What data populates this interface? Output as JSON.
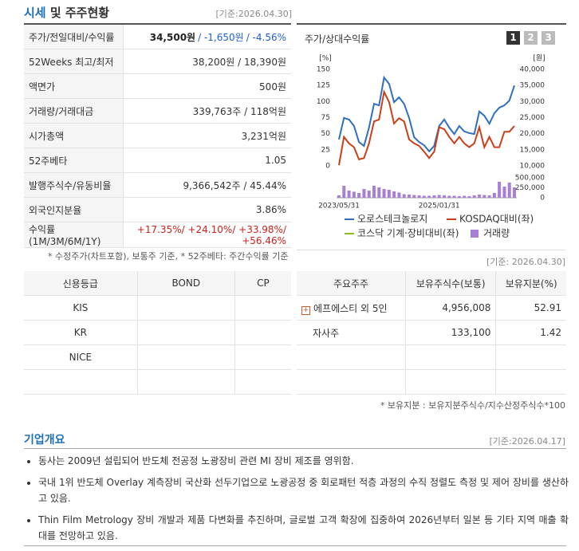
{
  "header": {
    "title_main": "시세",
    "title_rest": "및 주주현황",
    "date": "[기준:2026.04.30]"
  },
  "price_table": {
    "rows": [
      {
        "label": "주가/전일대비/수익률",
        "value": [
          "34,500원",
          "/ -1,650원",
          "/ -4.56%"
        ]
      },
      {
        "label": "52Weeks 최고/최저",
        "value": [
          "38,200원 / 18,390원"
        ]
      },
      {
        "label": "액면가",
        "value": [
          "500원"
        ]
      },
      {
        "label": "거래량/거래대금",
        "value": [
          "339,763주 / 118억원"
        ]
      },
      {
        "label": "시가총액",
        "value": [
          "3,231억원"
        ]
      },
      {
        "label": "52주베타",
        "value": [
          "1.05"
        ]
      },
      {
        "label": "발행주식수/유동비율",
        "value": [
          "9,366,542주 / 45.44%"
        ]
      },
      {
        "label": "외국인지분율",
        "value": [
          "3.86%"
        ]
      },
      {
        "label": "수익률 (1M/3M/6M/1Y)",
        "value": [
          "+17.35%/ +24.10%/ +33.98%/ +56.46%"
        ]
      }
    ],
    "note": "* 수정주가(차트포함), 보통주 기준, * 52주베타: 주간수익률 기준"
  },
  "chart_data": {
    "type": "line",
    "title": "주가/상대수익률",
    "buttons": [
      "1",
      "2",
      "3"
    ],
    "ylabel": "[%]",
    "y2label": "[원]",
    "categories": [
      "2023/05/31",
      null,
      null,
      null,
      null,
      null,
      null,
      null,
      null,
      null,
      null,
      null,
      null,
      null,
      null,
      null,
      null,
      null,
      null,
      null,
      "2025/01/31",
      null,
      null,
      null,
      null,
      null,
      null,
      null,
      null,
      null,
      null,
      null,
      null,
      null,
      null,
      null
    ],
    "ylim": [
      0,
      150
    ],
    "yticks": [
      0,
      25,
      50,
      75,
      100,
      125,
      150
    ],
    "y2lim": [
      10000,
      40000
    ],
    "y2ticks": [
      {
        "value": 10000,
        "label": "10,000"
      },
      {
        "value": 15000,
        "label": "15,000"
      },
      {
        "value": 20000,
        "label": "20,000"
      },
      {
        "value": 25000,
        "label": "25,000"
      },
      {
        "value": 30000,
        "label": "30,000"
      },
      {
        "value": 35000,
        "label": "35,000"
      },
      {
        "value": 40000,
        "label": "40,000"
      }
    ],
    "y3lim": [
      0,
      500000
    ],
    "y3ticks": [
      0,
      {
        "value": 250000,
        "label": "250,000"
      },
      {
        "value": 500000,
        "label": "500,000"
      }
    ],
    "series": [
      {
        "name": "오로스테크놀로지",
        "color": "#2e6fc0",
        "axis": "y2",
        "values": [
          18200,
          24900,
          24400,
          22400,
          17400,
          16200,
          21900,
          29300,
          28800,
          37500,
          35500,
          29800,
          31300,
          29300,
          24900,
          18900,
          17400,
          16400,
          14500,
          16200,
          22400,
          24400,
          21900,
          19900,
          22400,
          20700,
          20200,
          19900,
          26900,
          25600,
          23100,
          26400,
          28100,
          28800,
          30300,
          35000
        ]
      },
      {
        "name": "KOSDAQ대비(좌)",
        "color": "#c8401a",
        "axis": "y",
        "values": [
          1,
          45,
          35,
          29,
          10,
          12,
          35,
          69,
          72,
          115,
          99,
          66,
          74,
          69,
          41,
          35,
          31,
          22,
          12,
          22,
          60,
          57,
          45,
          35,
          45,
          35,
          29,
          35,
          60,
          29,
          45,
          29,
          29,
          53,
          53,
          62
        ]
      },
      {
        "name": "코스닥 기계·장비대비(좌)",
        "color": "#8db82a",
        "axis": "y",
        "values": [
          null,
          null,
          null,
          null,
          null,
          null,
          null,
          null,
          null,
          null,
          null,
          null,
          null,
          null,
          null,
          null,
          null,
          null,
          null,
          null,
          null,
          null,
          null,
          null,
          null,
          null,
          null,
          null,
          null,
          null,
          null,
          null,
          null,
          null,
          null,
          null
        ]
      },
      {
        "name": "거래량",
        "color": "#a77fd6",
        "axis": "y3",
        "values": [
          60000,
          300000,
          180000,
          150000,
          120000,
          220000,
          180000,
          300000,
          260000,
          220000,
          200000,
          160000,
          130000,
          90000,
          80000,
          70000,
          60000,
          50000,
          50000,
          60000,
          70000,
          60000,
          50000,
          50000,
          40000,
          50000,
          40000,
          60000,
          80000,
          70000,
          60000,
          120000,
          400000,
          280000,
          380000,
          260000
        ]
      }
    ]
  },
  "credit_table": {
    "headers": [
      "신용등급",
      "BOND",
      "CP"
    ],
    "rows": [
      [
        "KIS"
      ],
      [
        "KR"
      ],
      [
        "NICE"
      ]
    ]
  },
  "shareholders": {
    "date": "[기준: 2026.04.30]",
    "headers": [
      "주요주주",
      "보유주식수(보통)",
      "보유지분(%)"
    ],
    "rows": [
      [
        "에프에스티 외 5인",
        "4,956,008",
        "52.91"
      ],
      [
        "자사주",
        "133,100",
        "1.42"
      ]
    ],
    "note": "* 보유지분 : 보유지분주식수/지수산정주식수*100"
  },
  "overview": {
    "title": "기업개요",
    "date": "[기준:2026.04.17]",
    "items": [
      "동사는 2009년 설립되어 반도체 전공정 노광장비 관련 MI 장비 제조를 영위함.",
      "국내 1위 반도체 Overlay 계측장비 국산화 선두기업으로 노광공정 중 회로패턴 적층 과정의 수직 정렬도 측정 및 제어 장비를 생산하고 있음.",
      "Thin Film Metrology 장비 개발과 제품 다변화를 추진하며, 글로벌 고객 확장에 집중하여 2026년부터 일본 등 기타 지역 매출 확대를 전망하고 있음."
    ]
  }
}
